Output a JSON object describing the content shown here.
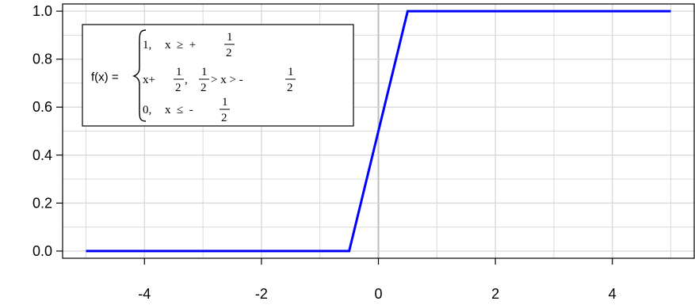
{
  "chart_data": {
    "type": "line",
    "x": [
      -5,
      -0.5,
      0.5,
      5
    ],
    "y": [
      0,
      0,
      1,
      1
    ],
    "xlim": [
      -5.4,
      5.4
    ],
    "ylim": [
      -0.03,
      1.03
    ],
    "x_ticks": [
      -4,
      -2,
      0,
      2,
      4
    ],
    "x_tick_labels": [
      "-4",
      "-2",
      "0",
      "2",
      "4"
    ],
    "y_ticks": [
      0,
      0.2,
      0.4,
      0.6,
      0.8,
      1.0
    ],
    "y_tick_labels": [
      "0.0",
      "0.2",
      "0.4",
      "0.6",
      "0.8",
      "1.0"
    ],
    "grid": true,
    "legend_placement": "top-left",
    "line_color": "#0000ff",
    "grid_color": "#d9d9d9",
    "zero_line_color": "#bdbdbd",
    "legend": {
      "lhs": "f(x) =",
      "rows": [
        {
          "expr": "1,",
          "cond": "x  ≥  +",
          "frac_num": "1",
          "frac_den": "2"
        },
        {
          "expr": "x+",
          "expr_frac_num": "1",
          "expr_frac_den": "2",
          "comma": ",",
          "cond_frac_num": "1",
          "cond_frac_den": "2",
          "cond": "> x > -",
          "frac_num": "1",
          "frac_den": "2"
        },
        {
          "expr": "0,",
          "cond": "x  ≤  -",
          "frac_num": "1",
          "frac_den": "2"
        }
      ]
    }
  }
}
